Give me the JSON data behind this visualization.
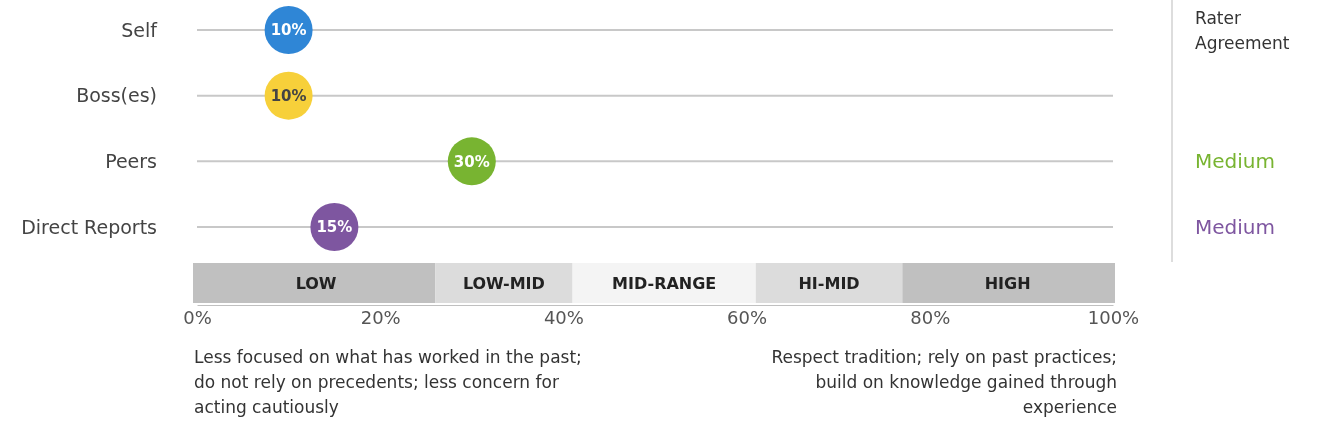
{
  "chart_data": {
    "type": "scatter",
    "orientation": "horizontal",
    "categories": [
      "Self",
      "Boss(es)",
      "Peers",
      "Direct Reports"
    ],
    "values": [
      10,
      10,
      30,
      15
    ],
    "colors": [
      "#2f86d6",
      "#f7d03a",
      "#78b431",
      "#7e56a0"
    ],
    "data_labels": true,
    "value_labels": [
      "10%",
      "10%",
      "30%",
      "15%"
    ],
    "grid": "y",
    "xlim": [
      0,
      100
    ],
    "xticks": [
      {
        "value": 0,
        "label": "0%"
      },
      {
        "value": 20,
        "label": "20%"
      },
      {
        "value": 40,
        "label": "40%"
      },
      {
        "value": 60,
        "label": "60%"
      },
      {
        "value": 80,
        "label": "80%"
      },
      {
        "value": 100,
        "label": "100%"
      }
    ],
    "bands": [
      {
        "axis": "x",
        "from": 0,
        "to": 26,
        "label": "LOW",
        "color": "#c0c0c0"
      },
      {
        "axis": "x",
        "from": 26,
        "to": 41,
        "label": "LOW-MID",
        "color": "#dcdcdc"
      },
      {
        "axis": "x",
        "from": 41,
        "to": 61,
        "label": "MID-RANGE",
        "color": "#f4f4f4"
      },
      {
        "axis": "x",
        "from": 61,
        "to": 77,
        "label": "HI-MID",
        "color": "#dcdcdc"
      },
      {
        "axis": "x",
        "from": 77,
        "to": 100,
        "label": "HIGH",
        "color": "#c0c0c0"
      }
    ],
    "annotations": [
      "Rater Agreement",
      "Less focused on what has worked in the past; do not rely on precedents; less concern for acting cautiously",
      "Respect tradition; rely on past practices; build on knowledge gained through experience",
      "Medium",
      "Medium"
    ]
  }
}
